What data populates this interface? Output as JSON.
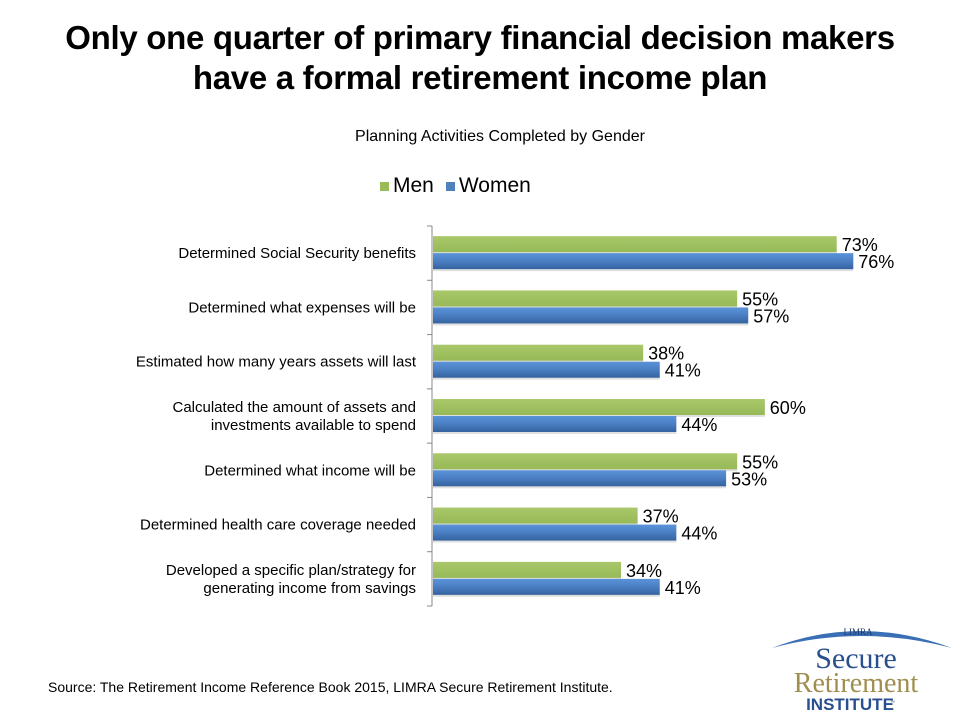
{
  "slide": {
    "title_line1": "Only one quarter of primary financial decision makers",
    "title_line2": "have a formal retirement income plan",
    "source": "Source: The Retirement Income Reference Book 2015, LIMRA Secure Retirement Institute."
  },
  "logo": {
    "top": "LIMRA",
    "line1": "Secure",
    "line2": "Retirement",
    "line3": "INSTITUTE",
    "tm": "™"
  },
  "chart_data": {
    "type": "bar",
    "orientation": "horizontal",
    "title": "Planning Activities Completed by Gender",
    "xlabel": "",
    "ylabel": "",
    "xlim": [
      0,
      80
    ],
    "grid": false,
    "legend_position": "top",
    "categories": [
      [
        "Determined Social Security benefits"
      ],
      [
        "Determined what expenses will be"
      ],
      [
        "Estimated how many years assets will last"
      ],
      [
        "Calculated the amount of assets and",
        "investments available to spend"
      ],
      [
        "Determined what income will be"
      ],
      [
        "Determined health care coverage needed"
      ],
      [
        "Developed a specific plan/strategy for",
        "generating income from savings"
      ]
    ],
    "series": [
      {
        "name": "Men",
        "color": "#9BBB59",
        "values": [
          73,
          55,
          38,
          60,
          55,
          37,
          34
        ],
        "labels": [
          "73%",
          "55%",
          "38%",
          "60%",
          "55%",
          "37%",
          "34%"
        ]
      },
      {
        "name": "Women",
        "color": "#4F81BD",
        "values": [
          76,
          57,
          41,
          44,
          53,
          44,
          41
        ],
        "labels": [
          "76%",
          "57%",
          "41%",
          "44%",
          "53%",
          "44%",
          "41%"
        ]
      }
    ]
  }
}
